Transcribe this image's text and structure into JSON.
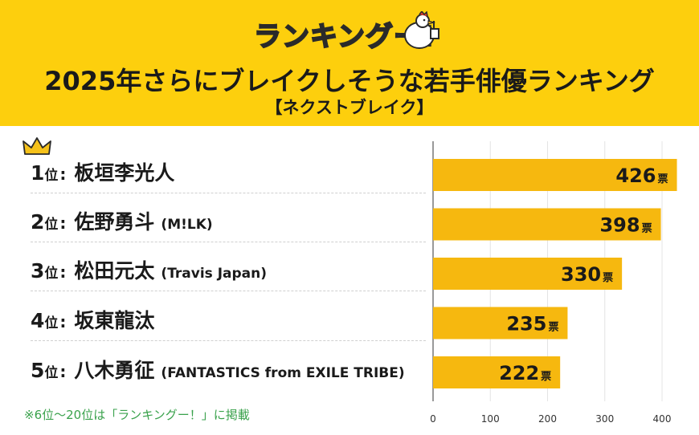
{
  "logo": {
    "text": "ランキングー!",
    "mascot_icon": "rooster-thumbs-up-icon"
  },
  "header": {
    "title": "2025年さらにブレイクしそうな若手俳優ランキング",
    "subtitle": "【ネクストブレイク】"
  },
  "ranking": [
    {
      "rank": "1",
      "unit": "位",
      "colon": ":",
      "name": "板垣李光人",
      "group": ""
    },
    {
      "rank": "2",
      "unit": "位",
      "colon": ":",
      "name": "佐野勇斗",
      "group": "(M!LK)"
    },
    {
      "rank": "3",
      "unit": "位",
      "colon": ":",
      "name": "松田元太",
      "group": "(Travis Japan)"
    },
    {
      "rank": "4",
      "unit": "位",
      "colon": ":",
      "name": "坂東龍汰",
      "group": ""
    },
    {
      "rank": "5",
      "unit": "位",
      "colon": ":",
      "name": "八木勇征",
      "group": "(FANTASTICS from EXILE TRIBE)"
    }
  ],
  "note": "※6位〜20位は「ランキングー！」に掲載",
  "colors": {
    "header_bg": "#fdcf0d",
    "bar": "#f6b80f",
    "note": "#3aa24c",
    "crown": "#f6c21a"
  },
  "chart_data": {
    "type": "bar",
    "orientation": "horizontal",
    "categories": [
      "板垣李光人",
      "佐野勇斗",
      "松田元太",
      "坂東龍汰",
      "八木勇征"
    ],
    "values": [
      426,
      398,
      330,
      235,
      222
    ],
    "value_unit": "票",
    "xlim": [
      0,
      440
    ],
    "xticks": [
      0,
      100,
      200,
      300,
      400
    ],
    "grid": true
  }
}
